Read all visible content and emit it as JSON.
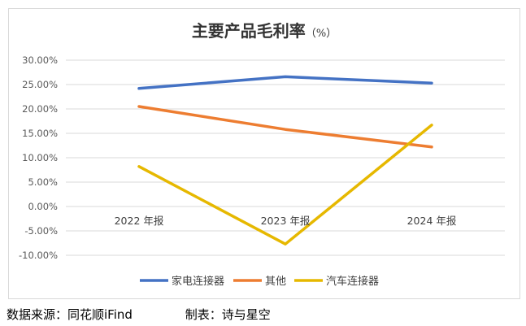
{
  "chart_data": {
    "type": "line",
    "title": "主要产品毛利率",
    "title_unit": "（%）",
    "categories": [
      "2022 年报",
      "2023 年报",
      "2024 年报"
    ],
    "series": [
      {
        "name": "家电连接器",
        "color": "#4472C4",
        "values": [
          24.2,
          26.6,
          25.3
        ]
      },
      {
        "name": "其他",
        "color": "#ED7D31",
        "values": [
          20.5,
          15.8,
          12.2
        ]
      },
      {
        "name": "汽车连接器",
        "color": "#E6B800",
        "values": [
          8.2,
          -7.7,
          16.7
        ]
      }
    ],
    "yticks": [
      "30.00%",
      "25.00%",
      "20.00%",
      "15.00%",
      "10.00%",
      "5.00%",
      "0.00%",
      "-5.00%",
      "-10.00%"
    ],
    "ylim": [
      -10,
      30
    ],
    "grid": true,
    "legend_position": "bottom"
  },
  "footer": {
    "source": "数据来源：同花顺iFind",
    "maker": "制表：诗与星空"
  }
}
